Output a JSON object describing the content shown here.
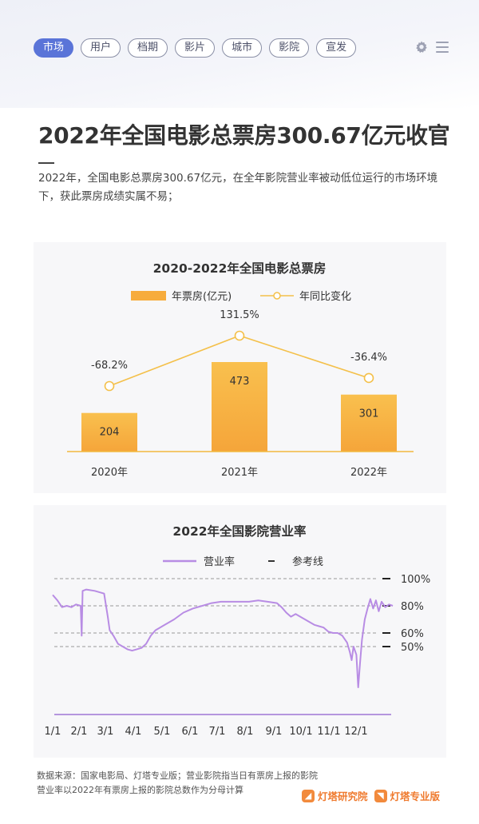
{
  "tabs": [
    "市场",
    "用户",
    "档期",
    "影片",
    "城市",
    "影院",
    "宣发"
  ],
  "active_tab": 0,
  "toolbar": {
    "settings_icon": "gear-icon",
    "menu_icon": "menu-icon"
  },
  "title": "2022年全国电影总票房300.67亿元收官",
  "intro": "2022年，全国电影总票房300.67亿元，在全年影院营业率被动低位运行的市场环境下，获此票房成绩实属不易；",
  "colors": {
    "accent": "#5a74d8",
    "bar": "#f7ac3c",
    "line": "#f4c04a",
    "purple": "#b88ce4"
  },
  "chart_data": [
    {
      "type": "bar",
      "title": "2020-2022年全国电影总票房",
      "legend": [
        "年票房(亿元)",
        "年同比变化"
      ],
      "legend_placement": "top",
      "categories": [
        "2020年",
        "2021年",
        "2022年"
      ],
      "series": [
        {
          "name": "年票房(亿元)",
          "type": "bar",
          "values": [
            204,
            473,
            301
          ],
          "value_labels": [
            "204",
            "473",
            "301"
          ]
        },
        {
          "name": "年同比变化",
          "type": "line",
          "values": [
            -68.2,
            131.5,
            -36.4
          ],
          "value_labels": [
            "-68.2%",
            "131.5%",
            "-36.4%"
          ]
        }
      ]
    },
    {
      "type": "line",
      "title": "2022年全国影院营业率",
      "legend": [
        "营业率",
        "参考线"
      ],
      "legend_placement": "top",
      "x_ticks": [
        "1/1",
        "2/1",
        "3/1",
        "4/1",
        "5/1",
        "6/1",
        "7/1",
        "8/1",
        "9/1",
        "10/1",
        "11/1",
        "12/1"
      ],
      "reference_lines": [
        100,
        80,
        60,
        50
      ],
      "reference_labels": [
        "100%",
        "80%",
        "60%",
        "50%"
      ],
      "series": [
        {
          "name": "营业率",
          "points": [
            [
              0,
              88
            ],
            [
              5,
              84
            ],
            [
              10,
              79
            ],
            [
              15,
              80
            ],
            [
              20,
              79
            ],
            [
              25,
              81
            ],
            [
              30,
              80
            ],
            [
              31,
              58
            ],
            [
              32,
              91
            ],
            [
              36,
              92
            ],
            [
              45,
              91
            ],
            [
              55,
              89
            ],
            [
              59,
              72
            ],
            [
              61,
              62
            ],
            [
              65,
              58
            ],
            [
              70,
              52
            ],
            [
              75,
              50
            ],
            [
              80,
              48
            ],
            [
              85,
              47
            ],
            [
              90,
              48
            ],
            [
              95,
              49
            ],
            [
              100,
              52
            ],
            [
              105,
              58
            ],
            [
              110,
              62
            ],
            [
              120,
              66
            ],
            [
              130,
              70
            ],
            [
              140,
              75
            ],
            [
              150,
              78
            ],
            [
              160,
              80
            ],
            [
              170,
              82
            ],
            [
              180,
              83
            ],
            [
              190,
              83
            ],
            [
              200,
              83
            ],
            [
              210,
              83
            ],
            [
              220,
              84
            ],
            [
              230,
              83
            ],
            [
              240,
              82
            ],
            [
              245,
              79
            ],
            [
              250,
              75
            ],
            [
              255,
              72
            ],
            [
              260,
              74
            ],
            [
              265,
              72
            ],
            [
              270,
              70
            ],
            [
              275,
              68
            ],
            [
              280,
              66
            ],
            [
              285,
              65
            ],
            [
              290,
              64
            ],
            [
              295,
              61
            ],
            [
              300,
              60
            ],
            [
              305,
              60
            ],
            [
              310,
              58
            ],
            [
              315,
              53
            ],
            [
              318,
              46
            ],
            [
              320,
              40
            ],
            [
              322,
              50
            ],
            [
              325,
              44
            ],
            [
              327,
              20
            ],
            [
              329,
              38
            ],
            [
              331,
              55
            ],
            [
              334,
              70
            ],
            [
              337,
              78
            ],
            [
              340,
              85
            ],
            [
              343,
              78
            ],
            [
              346,
              84
            ],
            [
              349,
              76
            ],
            [
              352,
              83
            ],
            [
              356,
              79
            ],
            [
              360,
              81
            ],
            [
              364,
              80
            ]
          ]
        }
      ]
    }
  ],
  "footer": {
    "source_line1": "数据来源：国家电影局、灯塔专业版；营业影院指当日有票房上报的影院",
    "source_line2": "营业率以2022年有票房上报的影院总数作为分母计算",
    "brand1": "灯塔研究院",
    "brand2": "灯塔专业版",
    "brand1_icon": "dengta-research-logo-icon",
    "brand2_icon": "dengta-pro-logo-icon"
  }
}
